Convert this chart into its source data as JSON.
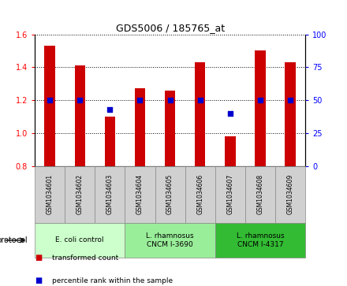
{
  "title": "GDS5006 / 185765_at",
  "samples": [
    "GSM1034601",
    "GSM1034602",
    "GSM1034603",
    "GSM1034604",
    "GSM1034605",
    "GSM1034606",
    "GSM1034607",
    "GSM1034608",
    "GSM1034609"
  ],
  "transformed_counts": [
    1.53,
    1.41,
    1.1,
    1.27,
    1.26,
    1.43,
    0.98,
    1.5,
    1.43
  ],
  "percentile_ranks": [
    50,
    50,
    43,
    50,
    50,
    50,
    40,
    50,
    50
  ],
  "ylim_left": [
    0.8,
    1.6
  ],
  "ylim_right": [
    0,
    100
  ],
  "yticks_left": [
    0.8,
    1.0,
    1.2,
    1.4,
    1.6
  ],
  "yticks_right": [
    0,
    25,
    50,
    75,
    100
  ],
  "bar_color": "#cc0000",
  "dot_color": "#0000cc",
  "groups": [
    {
      "label": "E. coli control",
      "start": 0,
      "end": 3,
      "color": "#ccffcc"
    },
    {
      "label": "L. rhamnosus\nCNCM I-3690",
      "start": 3,
      "end": 6,
      "color": "#99ee99"
    },
    {
      "label": "L. rhamnosus\nCNCM I-4317",
      "start": 6,
      "end": 9,
      "color": "#33bb33"
    }
  ],
  "legend_items": [
    {
      "label": "transformed count",
      "color": "#cc0000"
    },
    {
      "label": "percentile rank within the sample",
      "color": "#0000cc"
    }
  ],
  "bar_width": 0.35,
  "sample_area_color": "#d0d0d0",
  "sample_border_color": "#888888",
  "bg_color": "#ffffff"
}
